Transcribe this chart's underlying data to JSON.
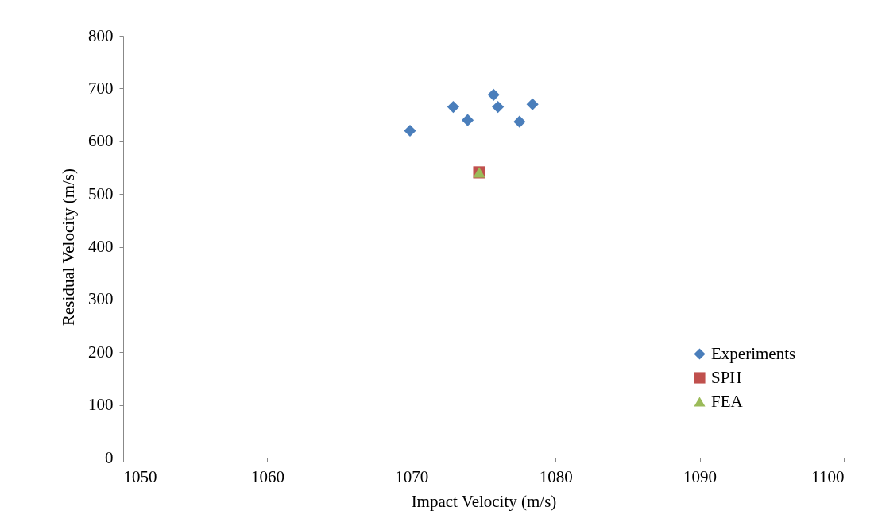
{
  "chart_data": {
    "type": "scatter",
    "xlabel": "Impact Velocity (m/s)",
    "ylabel": "Residual Velocity (m/s)",
    "series": [
      {
        "name": "Experiments",
        "color": "#4a7ebb",
        "marker": "diamond",
        "x": [
          1069.9,
          1072.9,
          1073.9,
          1075.7,
          1076.0,
          1077.5,
          1078.4
        ],
        "values": [
          620,
          665,
          640,
          688,
          665,
          637,
          670
        ]
      },
      {
        "name": "SPH",
        "color": "#c0504d",
        "marker": "square",
        "x": [
          1074.7
        ],
        "values": [
          541
        ]
      },
      {
        "name": "FEA",
        "color": "#9bbb59",
        "marker": "triangle",
        "x": [
          1074.7
        ],
        "values": [
          541
        ]
      }
    ],
    "xlim": [
      1050,
      1100
    ],
    "xticks": [
      1050,
      1060,
      1070,
      1080,
      1090,
      1100
    ],
    "ylim": [
      0,
      800
    ],
    "yticks": [
      0,
      100,
      200,
      300,
      400,
      500,
      600,
      700,
      800
    ],
    "grid": false,
    "legend": "bottom right"
  }
}
